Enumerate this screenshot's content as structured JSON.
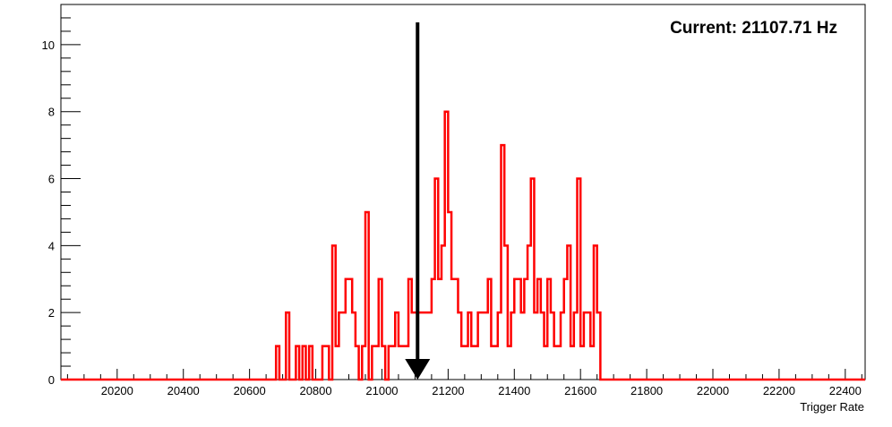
{
  "chart_data": {
    "type": "histogram",
    "title": "",
    "xlabel": "Trigger Rate",
    "ylabel": "",
    "xlim": [
      20030,
      22460
    ],
    "ylim": [
      0,
      11.2
    ],
    "bin_width": 10,
    "grid": false,
    "legend": "none",
    "x_ticks": [
      20200,
      20400,
      20600,
      20800,
      21000,
      21200,
      21400,
      21600,
      21800,
      22000,
      22200,
      22400
    ],
    "y_ticks": [
      0,
      2,
      4,
      6,
      8,
      10
    ],
    "annotation": {
      "text": "Current: 21107.71 Hz",
      "marker_x": 21107.71
    },
    "line_color": "#ff0000",
    "marker_color": "#000000",
    "bins": [
      [
        20680,
        1
      ],
      [
        20690,
        0
      ],
      [
        20700,
        0
      ],
      [
        20710,
        2
      ],
      [
        20720,
        0
      ],
      [
        20730,
        0
      ],
      [
        20740,
        1
      ],
      [
        20750,
        0
      ],
      [
        20760,
        1
      ],
      [
        20770,
        0
      ],
      [
        20780,
        1
      ],
      [
        20790,
        0
      ],
      [
        20800,
        0
      ],
      [
        20810,
        0
      ],
      [
        20820,
        1
      ],
      [
        20830,
        1
      ],
      [
        20840,
        0
      ],
      [
        20850,
        4
      ],
      [
        20860,
        1
      ],
      [
        20870,
        2
      ],
      [
        20880,
        2
      ],
      [
        20890,
        3
      ],
      [
        20900,
        3
      ],
      [
        20910,
        2
      ],
      [
        20920,
        1
      ],
      [
        20930,
        0
      ],
      [
        20940,
        1
      ],
      [
        20950,
        5
      ],
      [
        20960,
        0
      ],
      [
        20970,
        1
      ],
      [
        20980,
        1
      ],
      [
        20990,
        3
      ],
      [
        21000,
        1
      ],
      [
        21010,
        0
      ],
      [
        21020,
        1
      ],
      [
        21030,
        1
      ],
      [
        21040,
        2
      ],
      [
        21050,
        1
      ],
      [
        21060,
        1
      ],
      [
        21070,
        1
      ],
      [
        21080,
        3
      ],
      [
        21090,
        2
      ],
      [
        21100,
        2
      ],
      [
        21110,
        2
      ],
      [
        21120,
        2
      ],
      [
        21130,
        2
      ],
      [
        21140,
        2
      ],
      [
        21150,
        3
      ],
      [
        21160,
        6
      ],
      [
        21170,
        3
      ],
      [
        21180,
        4
      ],
      [
        21190,
        8
      ],
      [
        21200,
        5
      ],
      [
        21210,
        3
      ],
      [
        21220,
        3
      ],
      [
        21230,
        2
      ],
      [
        21240,
        1
      ],
      [
        21250,
        1
      ],
      [
        21260,
        2
      ],
      [
        21270,
        1
      ],
      [
        21280,
        1
      ],
      [
        21290,
        2
      ],
      [
        21300,
        2
      ],
      [
        21310,
        2
      ],
      [
        21320,
        3
      ],
      [
        21330,
        1
      ],
      [
        21340,
        1
      ],
      [
        21350,
        2
      ],
      [
        21360,
        7
      ],
      [
        21370,
        4
      ],
      [
        21380,
        1
      ],
      [
        21390,
        2
      ],
      [
        21400,
        3
      ],
      [
        21410,
        3
      ],
      [
        21420,
        2
      ],
      [
        21430,
        3
      ],
      [
        21440,
        4
      ],
      [
        21450,
        6
      ],
      [
        21460,
        2
      ],
      [
        21470,
        3
      ],
      [
        21480,
        2
      ],
      [
        21490,
        1
      ],
      [
        21500,
        3
      ],
      [
        21510,
        2
      ],
      [
        21520,
        1
      ],
      [
        21530,
        1
      ],
      [
        21540,
        2
      ],
      [
        21550,
        3
      ],
      [
        21560,
        4
      ],
      [
        21570,
        1
      ],
      [
        21580,
        2
      ],
      [
        21590,
        6
      ],
      [
        21600,
        1
      ],
      [
        21610,
        2
      ],
      [
        21620,
        2
      ],
      [
        21630,
        1
      ],
      [
        21640,
        4
      ],
      [
        21650,
        2
      ]
    ]
  }
}
